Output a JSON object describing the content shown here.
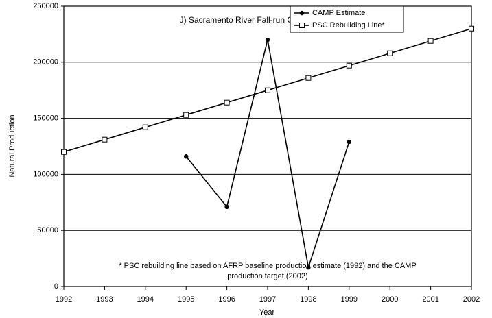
{
  "chart_data": {
    "type": "line",
    "title": "J) Sacramento River Fall-run Chinook",
    "x_label": "Year",
    "y_label": "Natural Production",
    "x": [
      1992,
      1993,
      1994,
      1995,
      1996,
      1997,
      1998,
      1999,
      2000,
      2001,
      2002
    ],
    "series": [
      {
        "name": "CAMP Estimate",
        "color": "#000000",
        "marker": "circle",
        "values": [
          null,
          null,
          null,
          116000,
          71000,
          220000,
          17000,
          129000,
          null,
          null,
          null
        ]
      },
      {
        "name": "PSC Rebuilding Line*",
        "color": "#000000",
        "marker": "square",
        "values": [
          120000,
          131000,
          142000,
          153000,
          164000,
          175000,
          186000,
          197000,
          208000,
          219000,
          230000
        ]
      }
    ],
    "xlim": [
      1992,
      2002
    ],
    "xticks": [
      1992,
      1993,
      1994,
      1995,
      1996,
      1997,
      1998,
      1999,
      2000,
      2001,
      2002
    ],
    "ylim": [
      0,
      250000
    ],
    "yticks": [
      0,
      50000,
      100000,
      150000,
      200000,
      250000
    ],
    "grid": true,
    "legend_position": "upper right",
    "annotations": [
      "* PSC rebuilding line based on AFRP baseline production estimate (1992) and the CAMP",
      "production target (2002)"
    ]
  }
}
